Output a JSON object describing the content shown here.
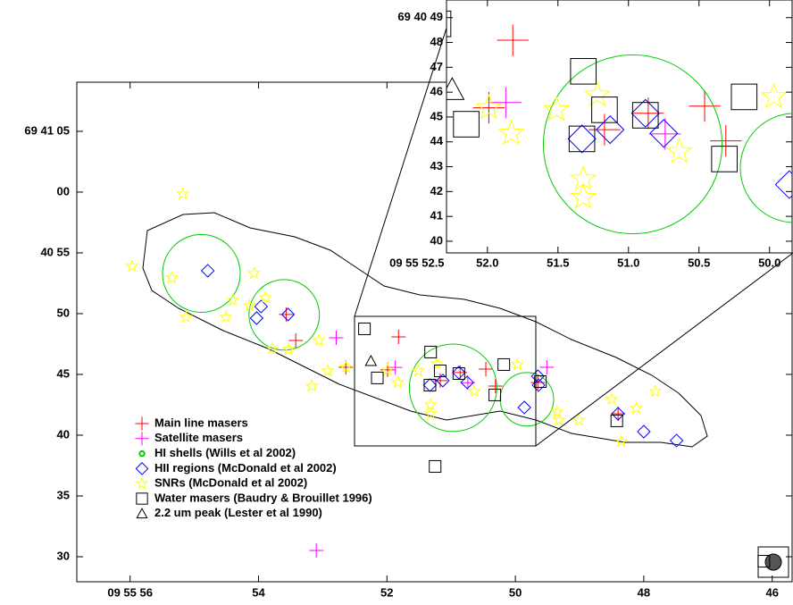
{
  "chart_data": [
    {
      "type": "scatter",
      "xlim": [
        56.83,
        45.69
      ],
      "ylim": [
        27.94,
        69.04
      ],
      "xticks": [
        {
          "value": 56,
          "label": "09 55 56"
        },
        54,
        52,
        50,
        48,
        46
      ],
      "yticks": [
        {
          "value": 65,
          "label": "69 41 05"
        },
        {
          "value": 60,
          "label": "00"
        },
        {
          "value": 55,
          "label": "40 55"
        },
        50,
        45,
        40,
        35,
        30
      ],
      "legend": "lower left",
      "series": [
        {
          "name": "Main line masers",
          "color": "#ff0000",
          "marker": "+",
          "x": [
            53.57,
            53.42,
            52.64,
            51.82,
            51.99,
            51.17,
            50.86,
            50.46,
            50.31,
            49.65,
            48.4
          ],
          "y": [
            49.93,
            47.79,
            45.59,
            48.09,
            45.37,
            44.49,
            45.15,
            45.44,
            44.04,
            44.34,
            41.76
          ]
        },
        {
          "name": "Satellite masers",
          "color": "#ff00ff",
          "marker": "+",
          "x": [
            52.79,
            51.87,
            50.74,
            49.51,
            53.1
          ],
          "y": [
            48.01,
            45.58,
            44.32,
            45.59,
            30.51
          ]
        },
        {
          "name": "HI shells (Wills et al 2002)",
          "color": "#00cc00",
          "marker": "circle",
          "x": [
            54.89,
            53.6,
            50.97,
            49.82
          ],
          "y": [
            53.31,
            49.9,
            43.9,
            42.95
          ],
          "radius": [
            3.2,
            2.9,
            3.6,
            2.2
          ]
        },
        {
          "name": "HII regions (McDonald et al 2002)",
          "color": "#0000ff",
          "marker": "diamond",
          "x": [
            54.79,
            53.96,
            54.03,
            53.54,
            51.33,
            51.13,
            50.88,
            50.75,
            49.86,
            49.65,
            49.64,
            48.4,
            48.0,
            47.49
          ],
          "y": [
            53.53,
            50.59,
            49.63,
            49.93,
            44.12,
            44.49,
            45.15,
            44.34,
            42.28,
            44.85,
            44.12,
            41.76,
            40.29,
            39.56
          ]
        },
        {
          "name": "SNRs (McDonald et al 2002)",
          "color": "#ffff00",
          "marker": "star",
          "x": [
            55.18,
            55.97,
            55.35,
            55.13,
            54.51,
            54.4,
            54.07,
            54.14,
            53.89,
            53.79,
            53.53,
            53.06,
            52.92,
            53.17,
            52.64,
            51.99,
            51.83,
            51.51,
            51.22,
            51.32,
            51.32,
            50.64,
            49.97,
            49.35,
            49.32,
            49.01,
            48.5,
            48.35,
            48.12,
            47.82
          ],
          "y": [
            59.85,
            53.9,
            52.94,
            49.71,
            49.71,
            51.1,
            53.31,
            50.66,
            51.32,
            47.13,
            47.06,
            47.79,
            45.29,
            44.04,
            45.59,
            45.37,
            44.34,
            45.29,
            45.88,
            42.5,
            41.76,
            43.6,
            45.81,
            41.91,
            41.25,
            41.25,
            42.94,
            39.49,
            42.21,
            43.6
          ]
        },
        {
          "name": "Water masers (Baudry & Brouillet 1996)",
          "color": "#000000",
          "marker": "square",
          "x": [
            52.35,
            51.32,
            51.17,
            50.88,
            51.33,
            52.15,
            50.18,
            50.32,
            49.61,
            48.42,
            51.25,
            46.13
          ],
          "y": [
            48.75,
            46.84,
            45.29,
            45.07,
            44.12,
            44.71,
            45.81,
            43.31,
            44.41,
            41.18,
            37.43,
            29.63
          ]
        },
        {
          "name": "2.2 um peak (Lester et al 1990)",
          "color": "#000000",
          "marker": "triangle",
          "x": [
            52.25
          ],
          "y": [
            46.1
          ]
        }
      ]
    },
    {
      "type": "scatter",
      "xlim": [
        52.29,
        49.84
      ],
      "ylim": [
        39.53,
        49.71
      ],
      "xticks": [
        {
          "value": 52.5,
          "label": "09 55 52.5"
        },
        {
          "value": 52.0,
          "label": "52.0"
        },
        51.5,
        {
          "value": 51.0,
          "label": "51.0"
        },
        50.5,
        {
          "value": 50.0,
          "label": "50.0"
        }
      ],
      "yticks": [
        {
          "value": 49,
          "label": "69 40 49"
        },
        48,
        47,
        46,
        45,
        44,
        43,
        42,
        41,
        40
      ]
    }
  ]
}
